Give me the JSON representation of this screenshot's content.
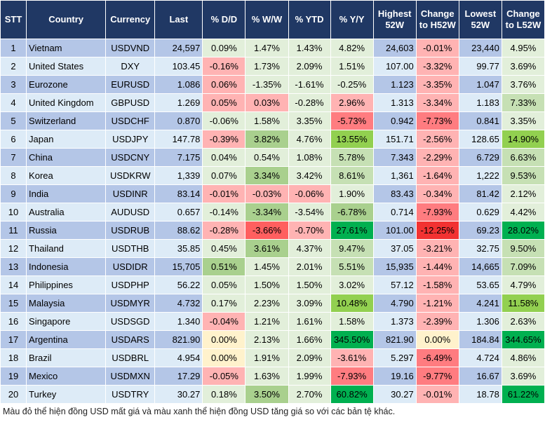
{
  "headers": [
    "STT",
    "Country",
    "Currency",
    "Last",
    "% D/D",
    "% W/W",
    "% YTD",
    "% Y/Y",
    "Highest 52W",
    "Change to H52W",
    "Lowest 52W",
    "Change to L52W"
  ],
  "rows": [
    {
      "stt": "1",
      "country": "Vietnam",
      "currency": "USDVND",
      "last": "24,597",
      "dd": "0.09%",
      "ww": "1.47%",
      "ytd": "1.43%",
      "yy": "4.82%",
      "high": "24,603",
      "chh": "-0.01%",
      "low": "23,440",
      "chl": "4.95%",
      "tones": [
        "g",
        "g",
        "g",
        "g",
        "r",
        "g"
      ]
    },
    {
      "stt": "2",
      "country": "United States",
      "currency": "DXY",
      "last": "103.45",
      "dd": "-0.16%",
      "ww": "1.73%",
      "ytd": "2.09%",
      "yy": "1.51%",
      "high": "107.00",
      "chh": "-3.32%",
      "low": "99.77",
      "chl": "3.69%",
      "tones": [
        "r",
        "g",
        "g",
        "g",
        "r",
        "g"
      ]
    },
    {
      "stt": "3",
      "country": "Eurozone",
      "currency": "EURUSD",
      "last": "1.086",
      "dd": "0.06%",
      "ww": "-1.35%",
      "ytd": "-1.61%",
      "yy": "-0.25%",
      "high": "1.123",
      "chh": "-3.35%",
      "low": "1.047",
      "chl": "3.76%",
      "tones": [
        "r",
        "g",
        "g",
        "g",
        "r",
        "g"
      ]
    },
    {
      "stt": "4",
      "country": "United Kingdom",
      "currency": "GBPUSD",
      "last": "1.269",
      "dd": "0.05%",
      "ww": "0.03%",
      "ytd": "-0.28%",
      "yy": "2.96%",
      "high": "1.313",
      "chh": "-3.34%",
      "low": "1.183",
      "chl": "7.33%",
      "tones": [
        "r",
        "r",
        "g",
        "r",
        "r",
        "G"
      ]
    },
    {
      "stt": "5",
      "country": "Switzerland",
      "currency": "USDCHF",
      "last": "0.870",
      "dd": "-0.06%",
      "ww": "1.58%",
      "ytd": "3.35%",
      "yy": "-5.73%",
      "high": "0.942",
      "chh": "-7.73%",
      "low": "0.841",
      "chl": "3.35%",
      "tones": [
        "g",
        "g",
        "g",
        "R",
        "R",
        "g"
      ]
    },
    {
      "stt": "6",
      "country": "Japan",
      "currency": "USDJPY",
      "last": "147.78",
      "dd": "-0.39%",
      "ww": "3.82%",
      "ytd": "4.76%",
      "yy": "13.55%",
      "high": "151.71",
      "chh": "-2.56%",
      "low": "128.65",
      "chl": "14.90%",
      "tones": [
        "r",
        "GG",
        "g",
        "GGG",
        "r",
        "GGG"
      ]
    },
    {
      "stt": "7",
      "country": "China",
      "currency": "USDCNY",
      "last": "7.175",
      "dd": "0.04%",
      "ww": "0.54%",
      "ytd": "1.08%",
      "yy": "5.78%",
      "high": "7.343",
      "chh": "-2.29%",
      "low": "6.729",
      "chl": "6.63%",
      "tones": [
        "g",
        "g",
        "g",
        "G",
        "r",
        "G"
      ]
    },
    {
      "stt": "8",
      "country": "Korea",
      "currency": "USDKRW",
      "last": "1,339",
      "dd": "0.07%",
      "ww": "3.34%",
      "ytd": "3.42%",
      "yy": "8.61%",
      "high": "1,361",
      "chh": "-1.64%",
      "low": "1,222",
      "chl": "9.53%",
      "tones": [
        "g",
        "GG",
        "g",
        "G",
        "r",
        "G"
      ]
    },
    {
      "stt": "9",
      "country": "India",
      "currency": "USDINR",
      "last": "83.14",
      "dd": "-0.01%",
      "ww": "-0.03%",
      "ytd": "-0.06%",
      "yy": "1.90%",
      "high": "83.43",
      "chh": "-0.34%",
      "low": "81.42",
      "chl": "2.12%",
      "tones": [
        "r",
        "r",
        "r",
        "g",
        "r",
        "g"
      ]
    },
    {
      "stt": "10",
      "country": "Australia",
      "currency": "AUDUSD",
      "last": "0.657",
      "dd": "-0.14%",
      "ww": "-3.34%",
      "ytd": "-3.54%",
      "yy": "-6.78%",
      "high": "0.714",
      "chh": "-7.93%",
      "low": "0.629",
      "chl": "4.42%",
      "tones": [
        "g",
        "GG",
        "g",
        "GG",
        "R",
        "g"
      ]
    },
    {
      "stt": "11",
      "country": "Russia",
      "currency": "USDRUB",
      "last": "88.62",
      "dd": "-0.28%",
      "ww": "-3.66%",
      "ytd": "-0.70%",
      "yy": "27.61%",
      "high": "101.00",
      "chh": "-12.25%",
      "low": "69.23",
      "chl": "28.02%",
      "tones": [
        "r",
        "RR",
        "r",
        "GGGG",
        "RRR",
        "GGGG"
      ]
    },
    {
      "stt": "12",
      "country": "Thailand",
      "currency": "USDTHB",
      "last": "35.85",
      "dd": "0.45%",
      "ww": "3.61%",
      "ytd": "4.37%",
      "yy": "9.47%",
      "high": "37.05",
      "chh": "-3.21%",
      "low": "32.75",
      "chl": "9.50%",
      "tones": [
        "g",
        "GG",
        "g",
        "G",
        "r",
        "G"
      ]
    },
    {
      "stt": "13",
      "country": "Indonesia",
      "currency": "USDIDR",
      "last": "15,705",
      "dd": "0.51%",
      "ww": "1.45%",
      "ytd": "2.01%",
      "yy": "5.51%",
      "high": "15,935",
      "chh": "-1.44%",
      "low": "14,665",
      "chl": "7.09%",
      "tones": [
        "GG",
        "g",
        "g",
        "G",
        "r",
        "G"
      ]
    },
    {
      "stt": "14",
      "country": "Philippines",
      "currency": "USDPHP",
      "last": "56.22",
      "dd": "0.05%",
      "ww": "1.50%",
      "ytd": "1.50%",
      "yy": "3.02%",
      "high": "57.12",
      "chh": "-1.58%",
      "low": "53.65",
      "chl": "4.79%",
      "tones": [
        "g",
        "g",
        "g",
        "g",
        "r",
        "g"
      ]
    },
    {
      "stt": "15",
      "country": "Malaysia",
      "currency": "USDMYR",
      "last": "4.732",
      "dd": "0.17%",
      "ww": "2.23%",
      "ytd": "3.09%",
      "yy": "10.48%",
      "high": "4.790",
      "chh": "-1.21%",
      "low": "4.241",
      "chl": "11.58%",
      "tones": [
        "g",
        "g",
        "g",
        "GGG",
        "r",
        "GGG"
      ]
    },
    {
      "stt": "16",
      "country": "Singapore",
      "currency": "USDSGD",
      "last": "1.340",
      "dd": "-0.04%",
      "ww": "1.21%",
      "ytd": "1.61%",
      "yy": "1.58%",
      "high": "1.373",
      "chh": "-2.39%",
      "low": "1.306",
      "chl": "2.63%",
      "tones": [
        "r",
        "g",
        "g",
        "g",
        "r",
        "g"
      ]
    },
    {
      "stt": "17",
      "country": "Argentina",
      "currency": "USDARS",
      "last": "821.90",
      "dd": "0.00%",
      "ww": "2.13%",
      "ytd": "1.66%",
      "yy": "345.50%",
      "high": "821.90",
      "chh": "0.00%",
      "low": "184.84",
      "chl": "344.65%",
      "tones": [
        "y",
        "g",
        "g",
        "GGGG",
        "y",
        "GGGG"
      ]
    },
    {
      "stt": "18",
      "country": "Brazil",
      "currency": "USDBRL",
      "last": "4.954",
      "dd": "0.00%",
      "ww": "1.91%",
      "ytd": "2.09%",
      "yy": "-3.61%",
      "high": "5.297",
      "chh": "-6.49%",
      "low": "4.724",
      "chl": "4.86%",
      "tones": [
        "y",
        "g",
        "g",
        "r",
        "R",
        "g"
      ]
    },
    {
      "stt": "19",
      "country": "Mexico",
      "currency": "USDMXN",
      "last": "17.29",
      "dd": "-0.05%",
      "ww": "1.63%",
      "ytd": "1.99%",
      "yy": "-7.93%",
      "high": "19.16",
      "chh": "-9.77%",
      "low": "16.67",
      "chl": "3.69%",
      "tones": [
        "r",
        "g",
        "g",
        "R",
        "R",
        "g"
      ]
    },
    {
      "stt": "20",
      "country": "Turkey",
      "currency": "USDTRY",
      "last": "30.27",
      "dd": "0.18%",
      "ww": "3.50%",
      "ytd": "2.70%",
      "yy": "60.82%",
      "high": "30.27",
      "chh": "-0.01%",
      "low": "18.78",
      "chl": "61.22%",
      "tones": [
        "g",
        "GG",
        "g",
        "GGGG",
        "r",
        "GGGG"
      ]
    }
  ],
  "note": "Màu đỏ thể hiện đồng USD mất giá và màu xanh thể hiện đồng USD tăng giá so với các bản tệ khác."
}
